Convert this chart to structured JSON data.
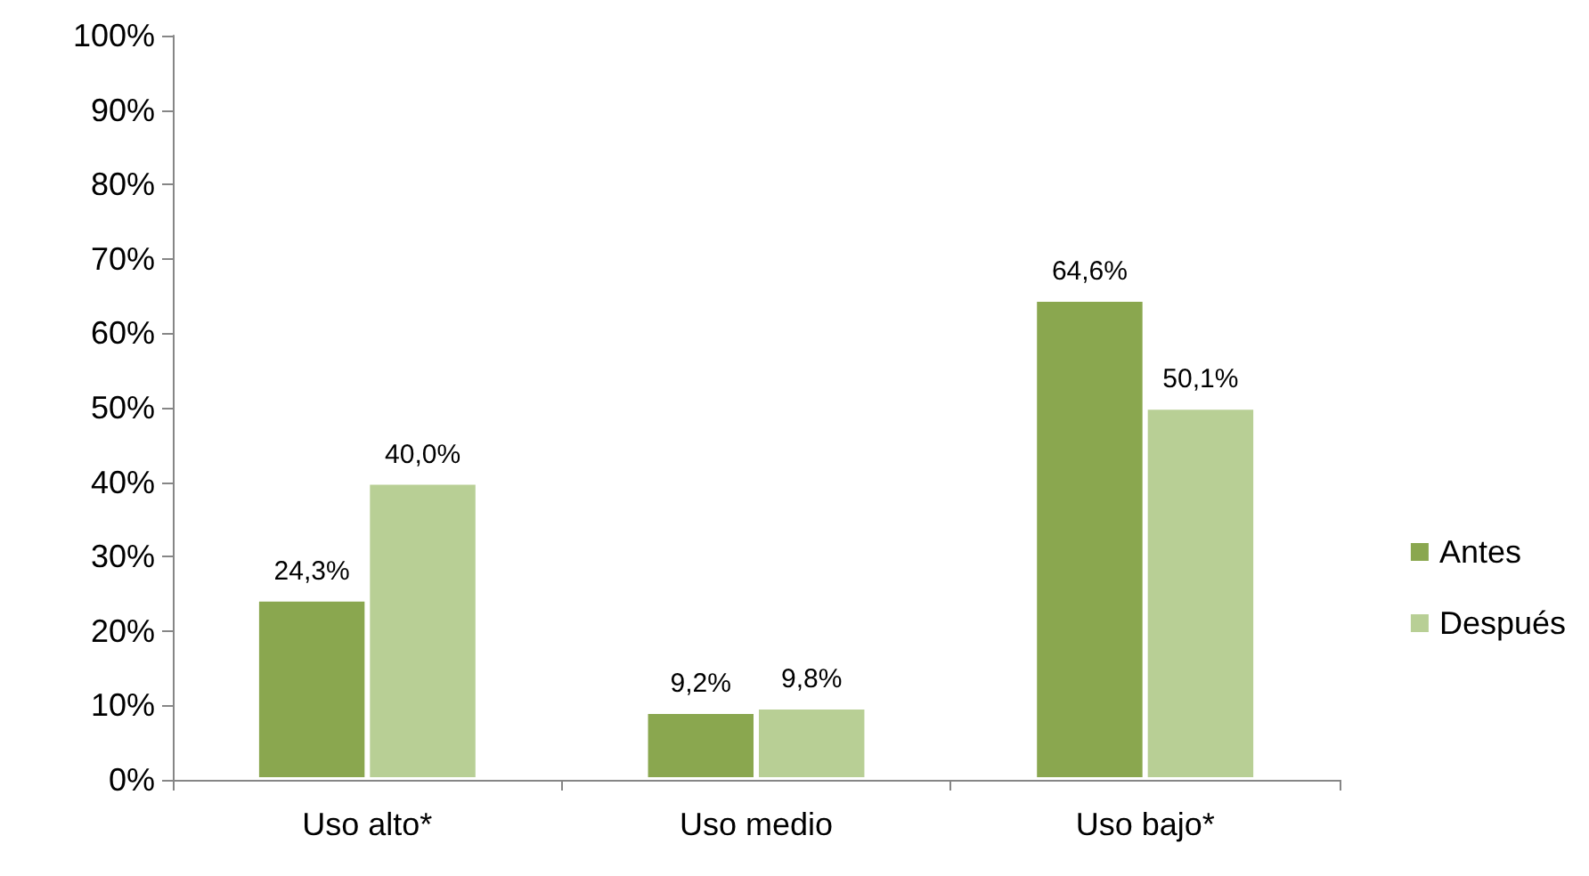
{
  "chart_data": {
    "type": "bar",
    "categories": [
      "Uso alto*",
      "Uso medio",
      "Uso bajo*"
    ],
    "series": [
      {
        "name": "Antes",
        "color": "#8aa74f",
        "values": [
          24.3,
          9.2,
          64.6
        ],
        "value_labels": [
          "24,3%",
          "9,2%",
          "64,6%"
        ]
      },
      {
        "name": "Después",
        "color": "#b8cf95",
        "values": [
          40.0,
          9.8,
          50.1
        ],
        "value_labels": [
          "40,0%",
          "9,8%",
          "50,1%"
        ]
      }
    ],
    "ylim": [
      0,
      100
    ],
    "yticks": [
      {
        "value": 0,
        "label": "0%"
      },
      {
        "value": 10,
        "label": "10%"
      },
      {
        "value": 20,
        "label": "20%"
      },
      {
        "value": 30,
        "label": "30%"
      },
      {
        "value": 40,
        "label": "40%"
      },
      {
        "value": 50,
        "label": "50%"
      },
      {
        "value": 60,
        "label": "60%"
      },
      {
        "value": 70,
        "label": "70%"
      },
      {
        "value": 80,
        "label": "80%"
      },
      {
        "value": 90,
        "label": "90%"
      },
      {
        "value": 100,
        "label": "100%"
      }
    ],
    "grid": false,
    "legend": "right"
  }
}
